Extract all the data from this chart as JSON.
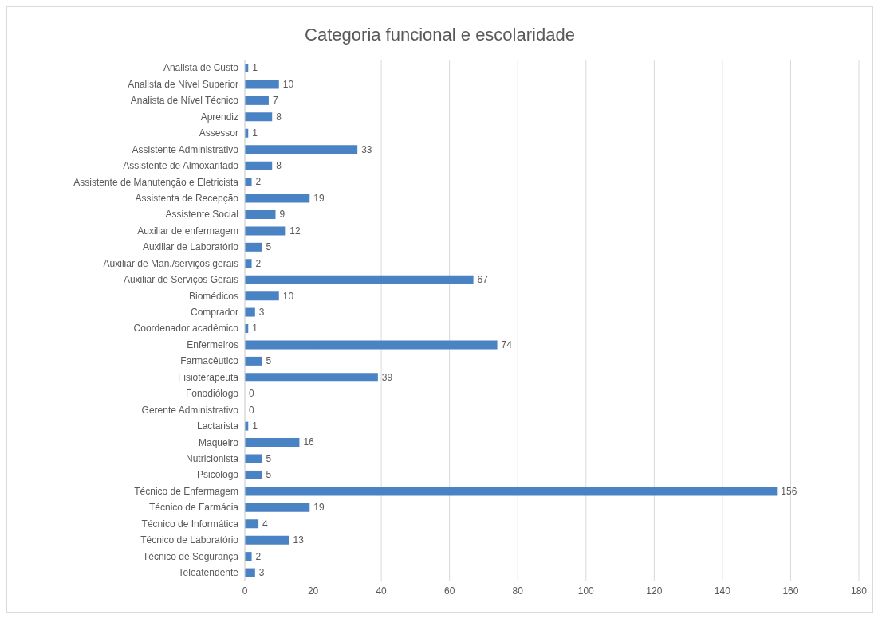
{
  "chart_data": {
    "type": "bar",
    "orientation": "horizontal",
    "title": "Categoria funcional e escolaridade",
    "categories": [
      "Analista de Custo",
      "Analista de Nível Superior",
      "Analista de Nível Técnico",
      "Aprendiz",
      "Assessor",
      "Assistente Administrativo",
      "Assistente de Almoxarifado",
      "Assistente de Manutenção e Eletricista",
      "Assistenta de Recepção",
      "Assistente Social",
      "Auxiliar de enfermagem",
      "Auxiliar de Laboratório",
      "Auxiliar de Man./serviços gerais",
      "Auxiliar de Serviços Gerais",
      "Biomédicos",
      "Comprador",
      "Coordenador acadêmico",
      "Enfermeiros",
      "Farmacêutico",
      "Fisioterapeuta",
      "Fonodiólogo",
      "Gerente Administrativo",
      "Lactarista",
      "Maqueiro",
      "Nutricionista",
      "Psicologo",
      "Técnico de Enfermagem",
      "Técnico de Farmácia",
      "Técnico de Informática",
      "Técnico de Laboratório",
      "Técnico de Segurança",
      "Teleatendente"
    ],
    "values": [
      1,
      10,
      7,
      8,
      1,
      33,
      8,
      2,
      19,
      9,
      12,
      5,
      2,
      67,
      10,
      3,
      1,
      74,
      5,
      39,
      0,
      0,
      1,
      16,
      5,
      5,
      156,
      19,
      4,
      13,
      2,
      3
    ],
    "color": "#4a83c4",
    "xlim": [
      0,
      180
    ],
    "xticks": [
      0,
      20,
      40,
      60,
      80,
      100,
      120,
      140,
      160,
      180
    ],
    "grid": "x",
    "data_labels": true
  }
}
